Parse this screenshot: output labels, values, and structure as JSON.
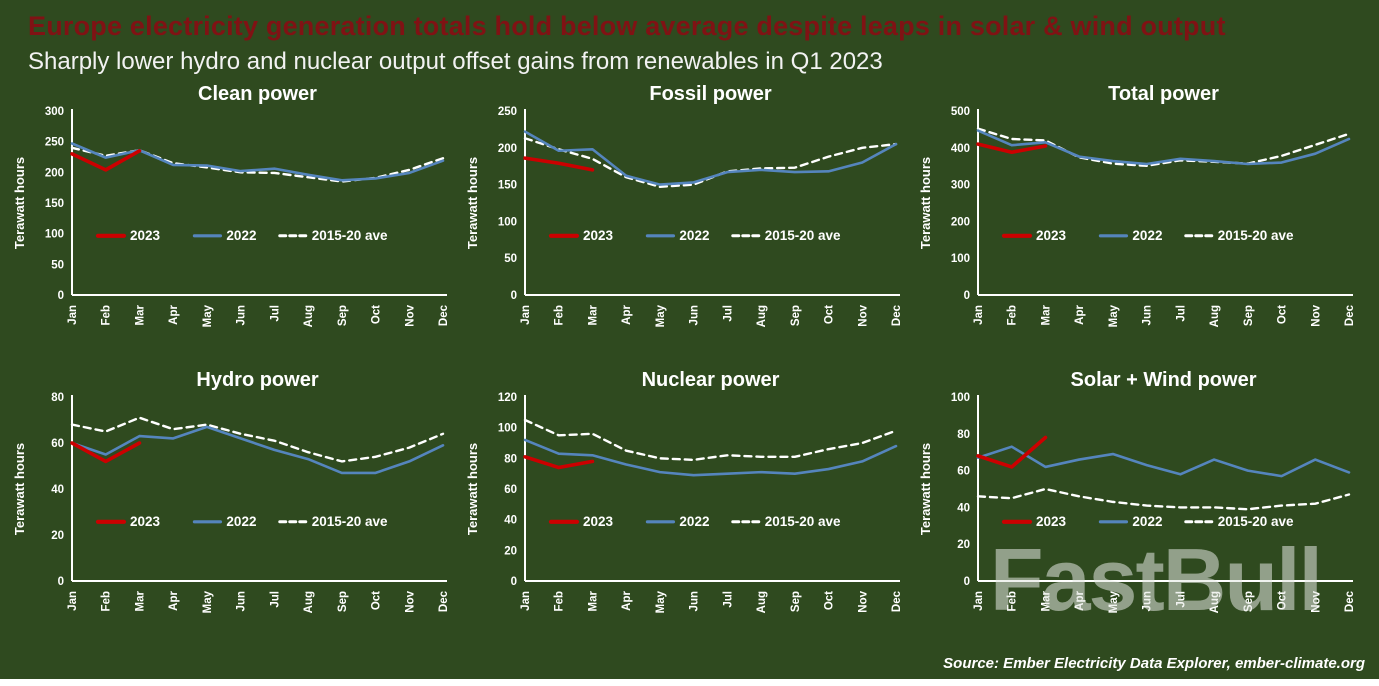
{
  "header": {
    "title": "Europe electricity generation totals hold below average despite leaps in solar & wind output",
    "subtitle": "Sharply lower hydro and nuclear output offset gains from renewables in Q1 2023"
  },
  "footer": {
    "source": "Source: Ember Electricity Data Explorer, ember-climate.org"
  },
  "watermark": "FastBull",
  "colors": {
    "background": "#2f4a1f",
    "title": "#801214",
    "text": "#ffffff",
    "series_2023": "#cc0000",
    "series_2022": "#5585bd",
    "series_ave": "#ffffff"
  },
  "legend_labels": [
    "2023",
    "2022",
    "2015-20 ave"
  ],
  "chart_data": [
    {
      "type": "line",
      "title": "Clean power",
      "ylabel": "Terawatt hours",
      "ylim": [
        0,
        300
      ],
      "yticks": [
        0,
        50,
        100,
        150,
        200,
        250,
        300
      ],
      "categories": [
        "Jan",
        "Feb",
        "Mar",
        "Apr",
        "May",
        "Jun",
        "Jul",
        "Aug",
        "Sep",
        "Oct",
        "Nov",
        "Dec"
      ],
      "series": [
        {
          "name": "2015-20 ave",
          "style": "dashed-white",
          "values": [
            240,
            227,
            236,
            215,
            208,
            200,
            199,
            192,
            185,
            191,
            204,
            223
          ]
        },
        {
          "name": "2022",
          "style": "blue",
          "values": [
            247,
            224,
            236,
            212,
            211,
            202,
            206,
            196,
            187,
            190,
            199,
            219
          ]
        },
        {
          "name": "2023",
          "style": "red",
          "values": [
            230,
            204,
            235
          ]
        }
      ]
    },
    {
      "type": "line",
      "title": "Fossil power",
      "ylabel": "Terawatt hours",
      "ylim": [
        0,
        250
      ],
      "yticks": [
        0,
        50,
        100,
        150,
        200,
        250
      ],
      "categories": [
        "Jan",
        "Feb",
        "Mar",
        "Apr",
        "May",
        "Jun",
        "Jul",
        "Aug",
        "Sep",
        "Oct",
        "Nov",
        "Dec"
      ],
      "series": [
        {
          "name": "2015-20 ave",
          "style": "dashed-white",
          "values": [
            213,
            198,
            185,
            160,
            147,
            150,
            168,
            172,
            173,
            188,
            200,
            205
          ]
        },
        {
          "name": "2022",
          "style": "blue",
          "values": [
            222,
            196,
            198,
            162,
            150,
            153,
            167,
            170,
            167,
            168,
            180,
            205
          ]
        },
        {
          "name": "2023",
          "style": "red",
          "values": [
            186,
            179,
            170
          ]
        }
      ]
    },
    {
      "type": "line",
      "title": "Total power",
      "ylabel": "Terawatt hours",
      "ylim": [
        0,
        500
      ],
      "yticks": [
        0,
        100,
        200,
        300,
        400,
        500
      ],
      "categories": [
        "Jan",
        "Feb",
        "Mar",
        "Apr",
        "May",
        "Jun",
        "Jul",
        "Aug",
        "Sep",
        "Oct",
        "Nov",
        "Dec"
      ],
      "series": [
        {
          "name": "2015-20 ave",
          "style": "dashed-white",
          "values": [
            452,
            424,
            420,
            374,
            357,
            351,
            366,
            362,
            357,
            378,
            408,
            438
          ]
        },
        {
          "name": "2022",
          "style": "blue",
          "values": [
            447,
            407,
            415,
            376,
            364,
            356,
            370,
            364,
            356,
            360,
            384,
            424
          ]
        },
        {
          "name": "2023",
          "style": "red",
          "values": [
            410,
            388,
            405
          ]
        }
      ]
    },
    {
      "type": "line",
      "title": "Hydro power",
      "ylabel": "Terawatt hours",
      "ylim": [
        0,
        80
      ],
      "yticks": [
        0,
        20,
        40,
        60,
        80
      ],
      "categories": [
        "Jan",
        "Feb",
        "Mar",
        "Apr",
        "May",
        "Jun",
        "Jul",
        "Aug",
        "Sep",
        "Oct",
        "Nov",
        "Dec"
      ],
      "series": [
        {
          "name": "2015-20 ave",
          "style": "dashed-white",
          "values": [
            68,
            65,
            71,
            66,
            68,
            64,
            61,
            56,
            52,
            54,
            58,
            64
          ]
        },
        {
          "name": "2022",
          "style": "blue",
          "values": [
            60,
            55,
            63,
            62,
            67,
            62,
            57,
            53,
            47,
            47,
            52,
            59
          ]
        },
        {
          "name": "2023",
          "style": "red",
          "values": [
            60,
            52,
            60
          ]
        }
      ]
    },
    {
      "type": "line",
      "title": "Nuclear power",
      "ylabel": "Terawatt hours",
      "ylim": [
        0,
        120
      ],
      "yticks": [
        0,
        20,
        40,
        60,
        80,
        100,
        120
      ],
      "categories": [
        "Jan",
        "Feb",
        "Mar",
        "Apr",
        "May",
        "Jun",
        "Jul",
        "Aug",
        "Sep",
        "Oct",
        "Nov",
        "Dec"
      ],
      "series": [
        {
          "name": "2015-20 ave",
          "style": "dashed-white",
          "values": [
            105,
            95,
            96,
            85,
            80,
            79,
            82,
            81,
            81,
            86,
            90,
            98
          ]
        },
        {
          "name": "2022",
          "style": "blue",
          "values": [
            92,
            83,
            82,
            76,
            71,
            69,
            70,
            71,
            70,
            73,
            78,
            88
          ]
        },
        {
          "name": "2023",
          "style": "red",
          "values": [
            81,
            74,
            78
          ]
        }
      ]
    },
    {
      "type": "line",
      "title": "Solar + Wind power",
      "ylabel": "Terawatt hours",
      "ylim": [
        0,
        100
      ],
      "yticks": [
        0,
        20,
        40,
        60,
        80,
        100
      ],
      "categories": [
        "Jan",
        "Feb",
        "Mar",
        "Apr",
        "May",
        "Jun",
        "Jul",
        "Aug",
        "Sep",
        "Oct",
        "Nov",
        "Dec"
      ],
      "series": [
        {
          "name": "2015-20 ave",
          "style": "dashed-white",
          "values": [
            46,
            45,
            50,
            46,
            43,
            41,
            40,
            40,
            39,
            41,
            42,
            47
          ]
        },
        {
          "name": "2022",
          "style": "blue",
          "values": [
            67,
            73,
            62,
            66,
            69,
            63,
            58,
            66,
            60,
            57,
            66,
            59
          ]
        },
        {
          "name": "2023",
          "style": "red",
          "values": [
            68,
            62,
            78
          ]
        }
      ]
    }
  ]
}
